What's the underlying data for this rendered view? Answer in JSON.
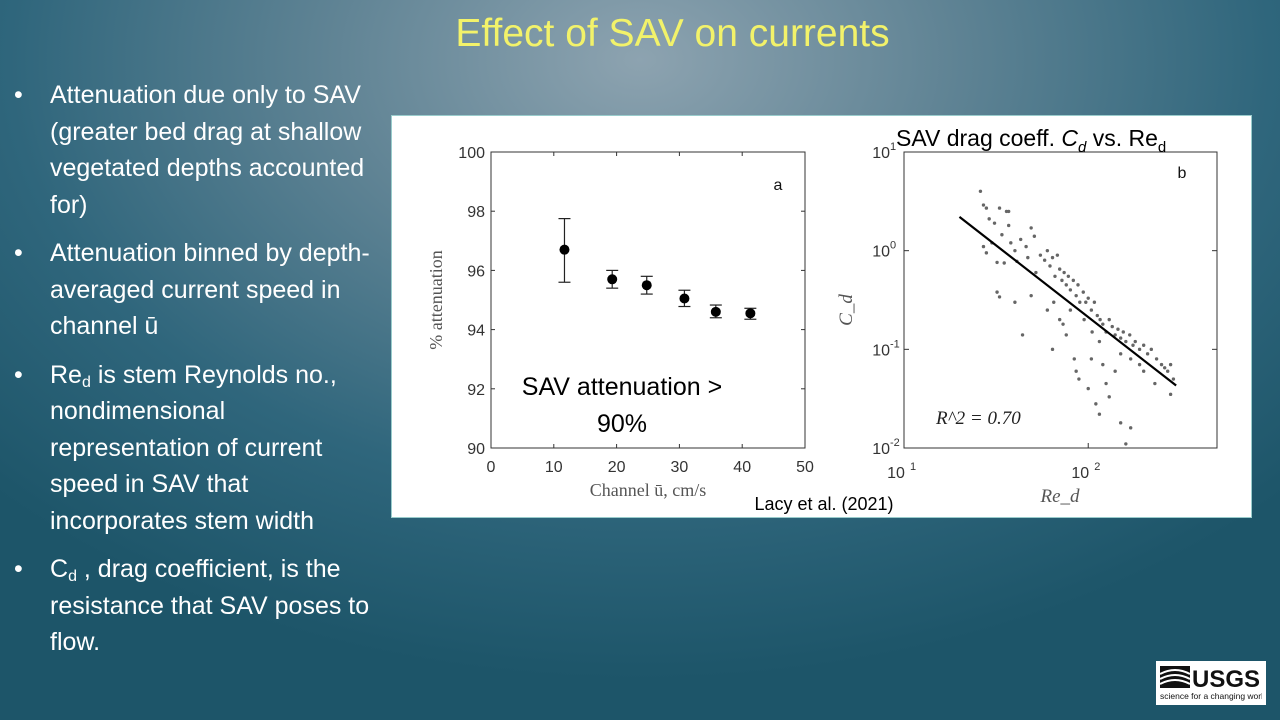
{
  "title": "Effect of SAV on currents",
  "bullets": [
    {
      "text": "Attenuation due only to SAV (greater bed drag at shallow vegetated depths accounted for)"
    },
    {
      "text": "Attenuation binned by depth-averaged current speed in channel ū"
    },
    {
      "pre": "Re",
      "sub": "d",
      "text": " is stem Reynolds no., nondimensional representation of current speed in SAV that incorporates stem width"
    },
    {
      "pre": " C",
      "sub": "d",
      "text": " , drag coefficient, is the resistance that SAV poses to flow."
    }
  ],
  "citation": "Lacy et al. (2021)",
  "logo": {
    "text": "USGS",
    "tagline": "science for a changing world"
  },
  "chart_data": [
    {
      "type": "scatter",
      "panel_label": "a",
      "xlabel": "Channel ū, cm/s",
      "ylabel": "% attenuation",
      "xlim": [
        0,
        50
      ],
      "ylim": [
        90,
        100
      ],
      "xticks": [
        0,
        10,
        20,
        30,
        40,
        50
      ],
      "yticks": [
        90,
        92,
        94,
        96,
        98,
        100
      ],
      "annotation": [
        "SAV attenuation >",
        "90%"
      ],
      "grid": false,
      "points": [
        {
          "x": 11.7,
          "y": 96.7,
          "lo": 95.6,
          "hi": 97.75
        },
        {
          "x": 19.3,
          "y": 95.7,
          "lo": 95.4,
          "hi": 96.0
        },
        {
          "x": 24.8,
          "y": 95.5,
          "lo": 95.2,
          "hi": 95.8
        },
        {
          "x": 30.8,
          "y": 95.05,
          "lo": 94.78,
          "hi": 95.33
        },
        {
          "x": 35.8,
          "y": 94.6,
          "lo": 94.4,
          "hi": 94.83
        },
        {
          "x": 41.3,
          "y": 94.55,
          "lo": 94.35,
          "hi": 94.72
        }
      ]
    },
    {
      "type": "scatter",
      "panel_label": "b",
      "title": "SAV drag coeff. C_d vs. Re_d",
      "xlabel": "Re_d",
      "ylabel": "C_d",
      "xscale": "log",
      "yscale": "log",
      "xlim": [
        10,
        500
      ],
      "ylim": [
        0.01,
        10
      ],
      "xticks": [
        "10^1",
        "10^2"
      ],
      "yticks": [
        "10^-2",
        "10^-1",
        "10^0",
        "10^1"
      ],
      "annotation": "R^2 = 0.70",
      "grid": false,
      "fit": [
        [
          20,
          2.2
        ],
        [
          300,
          0.043
        ]
      ],
      "points": [
        [
          26,
          4
        ],
        [
          27,
          2.9
        ],
        [
          28,
          2.7
        ],
        [
          29,
          2.1
        ],
        [
          31,
          1.9
        ],
        [
          33,
          2.7
        ],
        [
          36,
          2.5
        ],
        [
          37,
          2.5
        ],
        [
          27,
          1.1
        ],
        [
          28,
          0.95
        ],
        [
          30,
          1.2
        ],
        [
          32,
          0.76
        ],
        [
          34,
          1.45
        ],
        [
          35,
          0.75
        ],
        [
          37,
          1.8
        ],
        [
          38,
          1.2
        ],
        [
          40,
          1
        ],
        [
          41,
          0.78
        ],
        [
          43,
          1.3
        ],
        [
          46,
          1.1
        ],
        [
          47,
          0.85
        ],
        [
          49,
          1.7
        ],
        [
          51,
          1.4
        ],
        [
          52,
          0.6
        ],
        [
          55,
          0.9
        ],
        [
          58,
          0.8
        ],
        [
          60,
          1
        ],
        [
          62,
          0.7
        ],
        [
          64,
          0.85
        ],
        [
          66,
          0.55
        ],
        [
          68,
          0.9
        ],
        [
          70,
          0.65
        ],
        [
          72,
          0.5
        ],
        [
          74,
          0.6
        ],
        [
          76,
          0.45
        ],
        [
          78,
          0.55
        ],
        [
          80,
          0.4
        ],
        [
          83,
          0.5
        ],
        [
          86,
          0.35
        ],
        [
          88,
          0.45
        ],
        [
          90,
          0.3
        ],
        [
          94,
          0.38
        ],
        [
          97,
          0.3
        ],
        [
          100,
          0.33
        ],
        [
          104,
          0.25
        ],
        [
          108,
          0.3
        ],
        [
          112,
          0.22
        ],
        [
          116,
          0.2
        ],
        [
          120,
          0.18
        ],
        [
          125,
          0.15
        ],
        [
          130,
          0.2
        ],
        [
          135,
          0.17
        ],
        [
          140,
          0.14
        ],
        [
          145,
          0.16
        ],
        [
          150,
          0.13
        ],
        [
          155,
          0.15
        ],
        [
          160,
          0.12
        ],
        [
          168,
          0.14
        ],
        [
          175,
          0.11
        ],
        [
          180,
          0.12
        ],
        [
          190,
          0.1
        ],
        [
          200,
          0.11
        ],
        [
          210,
          0.09
        ],
        [
          220,
          0.1
        ],
        [
          235,
          0.08
        ],
        [
          250,
          0.07
        ],
        [
          260,
          0.065
        ],
        [
          270,
          0.06
        ],
        [
          280,
          0.07
        ],
        [
          290,
          0.05
        ],
        [
          280,
          0.035
        ],
        [
          32,
          0.38
        ],
        [
          33,
          0.34
        ],
        [
          40,
          0.3
        ],
        [
          44,
          0.14
        ],
        [
          49,
          0.35
        ],
        [
          60,
          0.25
        ],
        [
          64,
          0.1
        ],
        [
          70,
          0.2
        ],
        [
          73,
          0.18
        ],
        [
          76,
          0.14
        ],
        [
          84,
          0.08
        ],
        [
          86,
          0.06
        ],
        [
          89,
          0.05
        ],
        [
          100,
          0.04
        ],
        [
          104,
          0.08
        ],
        [
          110,
          0.028
        ],
        [
          115,
          0.022
        ],
        [
          120,
          0.07
        ],
        [
          125,
          0.045
        ],
        [
          130,
          0.033
        ],
        [
          140,
          0.06
        ],
        [
          150,
          0.018
        ],
        [
          160,
          0.011
        ],
        [
          170,
          0.016
        ],
        [
          190,
          0.07
        ],
        [
          230,
          0.045
        ],
        [
          65,
          0.3
        ],
        [
          80,
          0.25
        ],
        [
          95,
          0.2
        ],
        [
          105,
          0.15
        ],
        [
          115,
          0.12
        ],
        [
          150,
          0.09
        ],
        [
          170,
          0.08
        ],
        [
          200,
          0.06
        ]
      ]
    }
  ]
}
